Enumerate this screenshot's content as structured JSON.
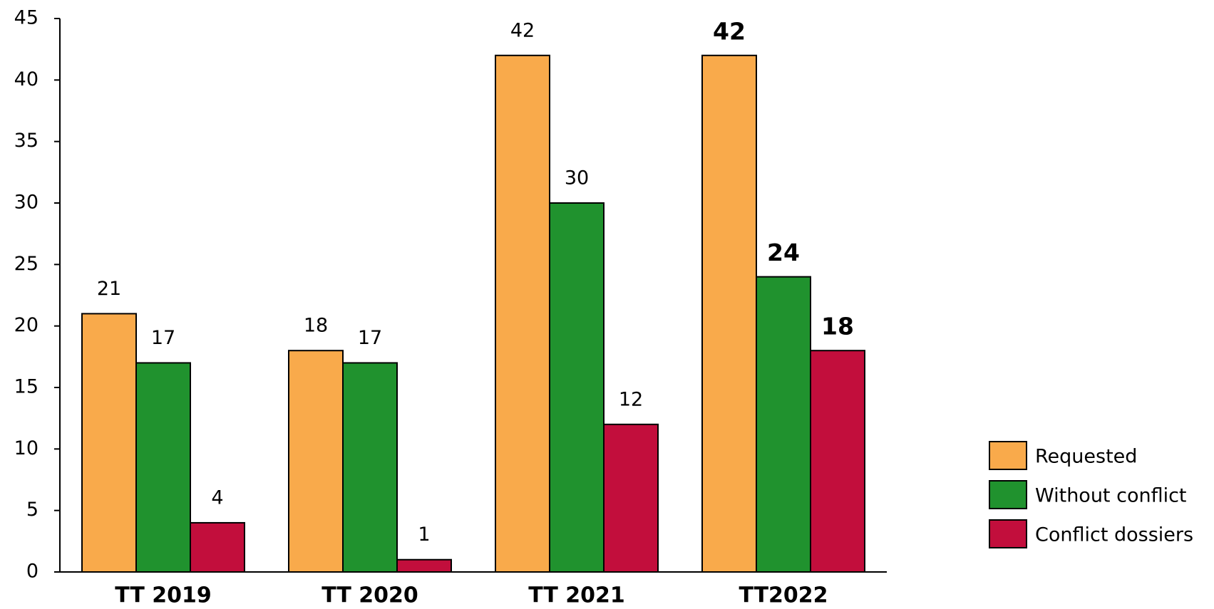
{
  "chart_data": {
    "type": "bar",
    "categories": [
      "TT 2019",
      "TT 2020",
      "TT 2021",
      "TT2022"
    ],
    "series": [
      {
        "name": "Requested",
        "color": "#f9aa4b",
        "values": [
          21,
          18,
          42,
          42
        ]
      },
      {
        "name": "Without conflict",
        "color": "#20922e",
        "values": [
          17,
          17,
          30,
          24
        ]
      },
      {
        "name": "Conflict dossiers",
        "color": "#c20e3c",
        "values": [
          4,
          1,
          12,
          18
        ]
      }
    ],
    "ylim": [
      0,
      45
    ],
    "yticks": [
      0,
      5,
      10,
      15,
      20,
      25,
      30,
      35,
      40,
      45
    ],
    "grid": false,
    "legend": "right"
  }
}
